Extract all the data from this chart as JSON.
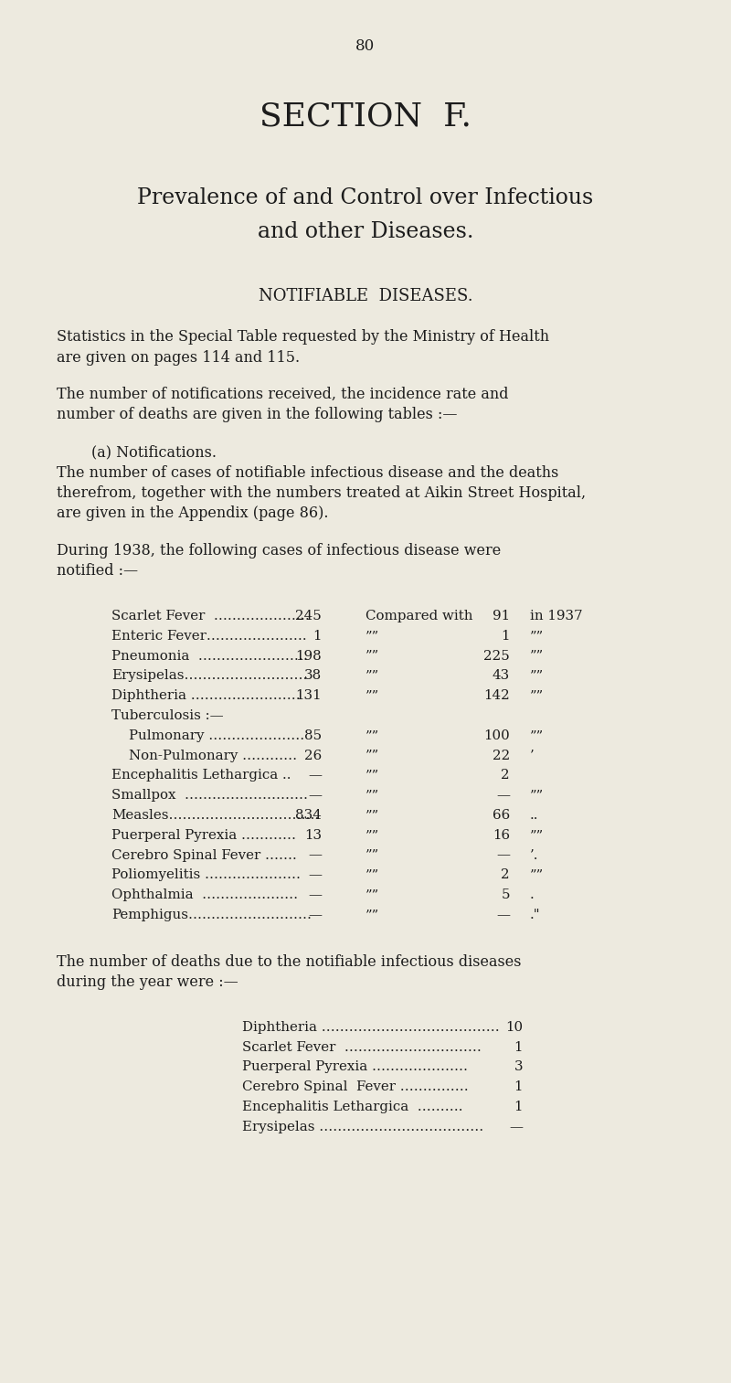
{
  "page_number": "80",
  "section_title": "SECTION  F.",
  "subtitle1": "Prevalence of and Control over Infectious",
  "subtitle2": "and other Diseases.",
  "section_heading": "NOTIFIABLE  DISEASES.",
  "para1_line1": "Statistics in the Special Table requested by the Ministry of Health",
  "para1_line2": "are given on pages 114 and 115.",
  "para2_line1": "The number of notifications received, the incidence rate and",
  "para2_line2": "number of deaths are given in the following tables :—",
  "para3_heading": "(a) Notifications.",
  "para3_line1": "The number of cases of notifiable infectious disease and the deaths",
  "para3_line2": "therefrom, together with the numbers treated at Aikin Street Hospital,",
  "para3_line3": "are given in the Appendix (page 86).",
  "para4_line1": "During 1938, the following cases of infectious disease were",
  "para4_line2": "notified :—",
  "notif_diseases": [
    "Scarlet Fever  …………………",
    "Enteric Fever………………….",
    "Pneumonia  ……………………",
    "Erysipelas………………………",
    "Diphtheria ……………………",
    "Tuberculosis :—",
    "    Pulmonary …………………",
    "    Non-Pulmonary …………",
    "Encephalitis Lethargica ..",
    "Smallpox  ………………………",
    "Measles……………………………",
    "Puerperal Pyrexia …………",
    "Cerebro Spinal Fever …….",
    "Poliomyelitis …………………",
    "Ophthalmia  …………………",
    "Pemphigus………………………"
  ],
  "notif_vals": [
    "245",
    "1",
    "198",
    "38",
    "131",
    "",
    "85",
    "26",
    "—",
    "—",
    "834",
    "13",
    "—",
    "—",
    "—",
    "—"
  ],
  "notif_cw": [
    "Compared with",
    "””",
    "””",
    "””",
    "””",
    "",
    "””",
    "””",
    "””",
    "””",
    "””",
    "””",
    "””",
    "””",
    "””",
    "””"
  ],
  "notif_prev": [
    "91",
    "1",
    "225",
    "43",
    "142",
    "",
    "100",
    "22",
    "2",
    "—",
    "66",
    "16",
    "—",
    "2",
    "5",
    "—"
  ],
  "notif_yr": [
    "in 1937",
    "””",
    "””",
    "””",
    "””",
    "",
    "””",
    "’",
    "",
    "””",
    "..",
    "””",
    "’.",
    "””",
    ".",
    ".\""
  ],
  "deaths_para_line1": "The number of deaths due to the notifiable infectious diseases",
  "deaths_para_line2": "during the year were :—",
  "death_diseases": [
    "Diphtheria …………………………………",
    "Scarlet Fever  …………………………",
    "Puerperal Pyrexia …………………",
    "Cerebro Spinal  Fever ……………",
    "Encephalitis Lethargica  ……….",
    "Erysipelas ………………………………"
  ],
  "death_vals": [
    "10",
    "1",
    "3",
    "1",
    "1",
    "—"
  ],
  "bg_color": "#edeadf",
  "text_color": "#1c1c1c"
}
